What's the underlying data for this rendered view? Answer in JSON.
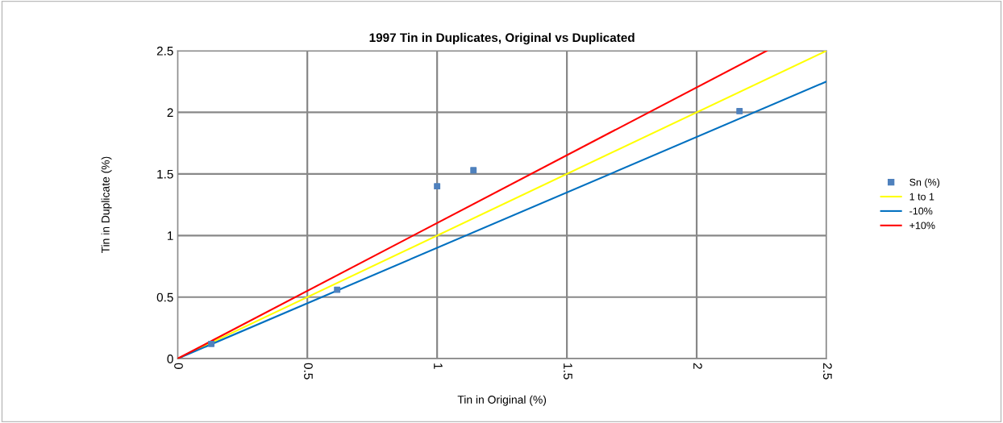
{
  "chart_data": {
    "type": "scatter",
    "title": "1997 Tin in Duplicates, Original vs Duplicated",
    "xlabel": "Tin in Original (%)",
    "ylabel": "Tin in Duplicate (%)",
    "x": [
      0.13,
      0.615,
      1.0,
      1.14,
      2.165
    ],
    "series": [
      {
        "name": "Sn (%)",
        "marker": "square",
        "color": "#4f81bd",
        "values": [
          0.12,
          0.56,
          1.4,
          1.53,
          2.01
        ]
      },
      {
        "name": "1 to 1",
        "type": "line",
        "marker": "none",
        "color": "#ffff00",
        "x": [
          0,
          2.5
        ],
        "values": [
          0,
          2.5
        ]
      },
      {
        "name": "-10%",
        "type": "line",
        "marker": "none",
        "color": "#0070c0",
        "x": [
          0,
          2.5
        ],
        "values": [
          0,
          2.25
        ]
      },
      {
        "name": "+10%",
        "type": "line",
        "marker": "none",
        "color": "#ff0000",
        "x": [
          0,
          2.27
        ],
        "values": [
          0,
          2.5
        ]
      }
    ],
    "xlim": [
      0,
      2.5
    ],
    "ylim": [
      0,
      2.5
    ],
    "xticks": [
      0,
      0.5,
      1,
      1.5,
      2,
      2.5
    ],
    "yticks": [
      0,
      0.5,
      1,
      1.5,
      2,
      2.5
    ],
    "grid": true,
    "legend": "right"
  }
}
